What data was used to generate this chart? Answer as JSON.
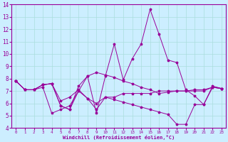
{
  "xlabel": "Windchill (Refroidissement éolien,°C)",
  "xlim": [
    -0.5,
    23.5
  ],
  "ylim": [
    4,
    14
  ],
  "yticks": [
    4,
    5,
    6,
    7,
    8,
    9,
    10,
    11,
    12,
    13,
    14
  ],
  "xticks": [
    0,
    1,
    2,
    3,
    4,
    5,
    6,
    7,
    8,
    9,
    10,
    11,
    12,
    13,
    14,
    15,
    16,
    17,
    18,
    19,
    20,
    21,
    22,
    23
  ],
  "line_color": "#990099",
  "bg_color": "#cceeff",
  "grid_color": "#aadddd",
  "lines": [
    {
      "x": [
        0,
        1,
        2,
        3,
        4,
        5,
        6,
        7,
        8,
        9,
        10,
        11,
        12,
        13,
        14,
        15,
        16,
        17,
        18,
        19,
        20,
        21,
        22,
        23
      ],
      "y": [
        7.8,
        7.1,
        7.1,
        7.5,
        7.6,
        5.8,
        5.5,
        7.0,
        8.2,
        5.2,
        8.2,
        10.8,
        7.9,
        9.6,
        10.8,
        13.6,
        11.6,
        9.5,
        9.3,
        7.1,
        6.6,
        5.9,
        7.3,
        7.2
      ]
    },
    {
      "x": [
        0,
        1,
        2,
        3,
        4,
        5,
        6,
        7,
        8,
        9,
        10,
        11,
        12,
        13,
        14,
        15,
        16,
        17,
        18,
        19,
        20,
        21,
        22,
        23
      ],
      "y": [
        7.8,
        7.1,
        7.1,
        7.5,
        7.6,
        5.8,
        5.5,
        7.4,
        8.2,
        8.5,
        8.3,
        8.1,
        7.8,
        7.6,
        7.3,
        7.1,
        6.8,
        6.9,
        7.0,
        7.0,
        7.1,
        7.1,
        7.3,
        7.2
      ]
    },
    {
      "x": [
        0,
        1,
        2,
        3,
        4,
        5,
        6,
        7,
        8,
        9,
        10,
        11,
        12,
        13,
        14,
        15,
        16,
        17,
        18,
        19,
        20,
        21,
        22,
        23
      ],
      "y": [
        7.8,
        7.1,
        7.1,
        7.3,
        5.2,
        5.5,
        5.8,
        7.0,
        6.4,
        5.5,
        6.5,
        6.3,
        6.1,
        5.9,
        5.7,
        5.5,
        5.3,
        5.1,
        4.3,
        4.3,
        5.9,
        5.9,
        7.4,
        7.2
      ]
    },
    {
      "x": [
        0,
        1,
        2,
        3,
        4,
        5,
        6,
        7,
        8,
        9,
        10,
        11,
        12,
        13,
        14,
        15,
        16,
        17,
        18,
        19,
        20,
        21,
        22,
        23
      ],
      "y": [
        7.8,
        7.1,
        7.1,
        7.5,
        7.6,
        6.2,
        6.5,
        7.1,
        6.4,
        6.0,
        6.5,
        6.5,
        6.8,
        6.8,
        6.8,
        6.8,
        7.0,
        7.0,
        7.0,
        7.0,
        7.0,
        7.0,
        7.3,
        7.2
      ]
    }
  ]
}
